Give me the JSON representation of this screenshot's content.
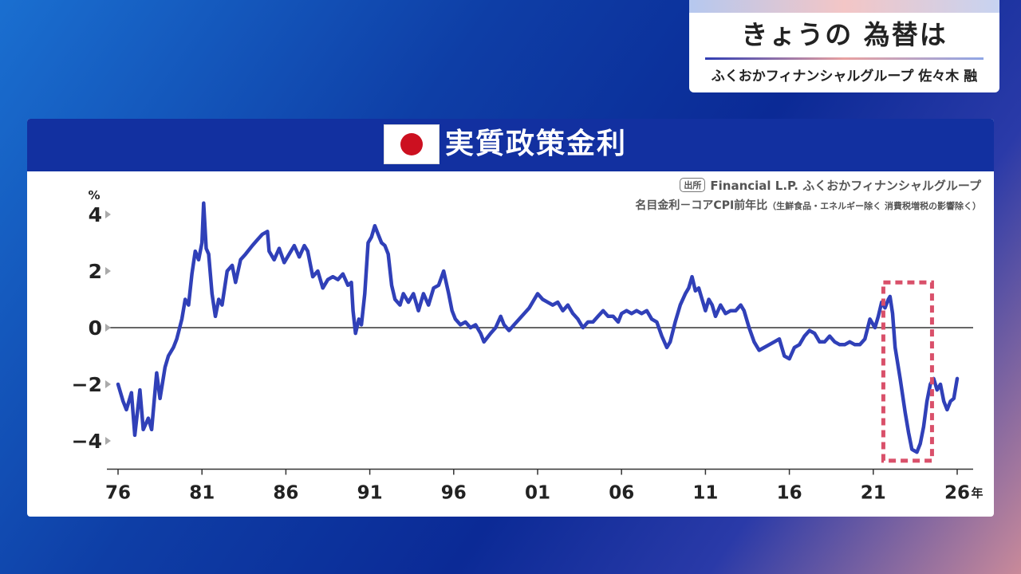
{
  "header": {
    "title": "きょうの 為替は",
    "byline": "ふくおかフィナンシャルグループ 佐々木 融"
  },
  "panel": {
    "title": "実質政策金利",
    "source_tag": "出所",
    "source": "Financial L.P. ふくおかフィナンシャルグループ",
    "note_main": "名目金利－コアCPI前年比",
    "note_detail": "（生鮮食品・エネルギー除く 消費税増税の影響除く）"
  },
  "colors": {
    "series": "#3040b8",
    "highlight": "#d9506a",
    "header_bg": "#1230a0"
  },
  "chart_data": {
    "type": "line",
    "title": "実質政策金利",
    "y_unit": "%",
    "x_unit": "年",
    "xlim": [
      1976,
      2026.5
    ],
    "ylim": [
      -5,
      4.5
    ],
    "y_ticks": [
      4,
      2,
      0,
      -2,
      -4
    ],
    "y_tick_labels": [
      "4",
      "2",
      "0",
      "−2",
      "−4"
    ],
    "x_ticks": [
      1976,
      1981,
      1986,
      1991,
      1996,
      2001,
      2006,
      2011,
      2016,
      2021,
      2026
    ],
    "x_tick_labels": [
      "76",
      "81",
      "86",
      "91",
      "96",
      "01",
      "06",
      "11",
      "16",
      "21",
      "26"
    ],
    "highlight_box": {
      "x_range": [
        2021.6,
        2024.5
      ],
      "y_range": [
        -4.7,
        1.6
      ]
    },
    "series": [
      {
        "values": [
          [
            1976.0,
            -2.0
          ],
          [
            1976.3,
            -2.6
          ],
          [
            1976.5,
            -2.9
          ],
          [
            1976.8,
            -2.3
          ],
          [
            1977.0,
            -3.8
          ],
          [
            1977.3,
            -2.2
          ],
          [
            1977.5,
            -3.6
          ],
          [
            1977.8,
            -3.2
          ],
          [
            1978.0,
            -3.6
          ],
          [
            1978.3,
            -1.6
          ],
          [
            1978.5,
            -2.5
          ],
          [
            1978.8,
            -1.4
          ],
          [
            1979.0,
            -1.0
          ],
          [
            1979.3,
            -0.7
          ],
          [
            1979.5,
            -0.4
          ],
          [
            1979.8,
            0.3
          ],
          [
            1980.0,
            1.0
          ],
          [
            1980.2,
            0.8
          ],
          [
            1980.4,
            1.9
          ],
          [
            1980.6,
            2.7
          ],
          [
            1980.8,
            2.4
          ],
          [
            1981.0,
            3.0
          ],
          [
            1981.1,
            4.4
          ],
          [
            1981.25,
            2.8
          ],
          [
            1981.4,
            2.6
          ],
          [
            1981.6,
            1.2
          ],
          [
            1981.8,
            0.4
          ],
          [
            1982.0,
            1.0
          ],
          [
            1982.2,
            0.8
          ],
          [
            1982.5,
            2.0
          ],
          [
            1982.8,
            2.2
          ],
          [
            1983.0,
            1.6
          ],
          [
            1983.3,
            2.4
          ],
          [
            1983.6,
            2.6
          ],
          [
            1984.0,
            2.9
          ],
          [
            1984.3,
            3.1
          ],
          [
            1984.6,
            3.3
          ],
          [
            1984.9,
            3.4
          ],
          [
            1985.0,
            2.7
          ],
          [
            1985.3,
            2.4
          ],
          [
            1985.6,
            2.8
          ],
          [
            1985.9,
            2.3
          ],
          [
            1986.2,
            2.6
          ],
          [
            1986.5,
            2.9
          ],
          [
            1986.8,
            2.5
          ],
          [
            1987.1,
            2.9
          ],
          [
            1987.3,
            2.7
          ],
          [
            1987.6,
            1.8
          ],
          [
            1987.9,
            2.0
          ],
          [
            1988.2,
            1.4
          ],
          [
            1988.5,
            1.7
          ],
          [
            1988.8,
            1.8
          ],
          [
            1989.1,
            1.7
          ],
          [
            1989.4,
            1.9
          ],
          [
            1989.7,
            1.5
          ],
          [
            1989.9,
            1.6
          ],
          [
            1990.0,
            0.6
          ],
          [
            1990.15,
            -0.2
          ],
          [
            1990.35,
            0.3
          ],
          [
            1990.5,
            0.1
          ],
          [
            1990.7,
            1.2
          ],
          [
            1990.9,
            3.0
          ],
          [
            1991.1,
            3.2
          ],
          [
            1991.3,
            3.6
          ],
          [
            1991.5,
            3.3
          ],
          [
            1991.7,
            3.0
          ],
          [
            1991.9,
            2.9
          ],
          [
            1992.1,
            2.6
          ],
          [
            1992.3,
            1.5
          ],
          [
            1992.5,
            1.0
          ],
          [
            1992.8,
            0.8
          ],
          [
            1993.0,
            1.2
          ],
          [
            1993.3,
            0.9
          ],
          [
            1993.6,
            1.2
          ],
          [
            1993.9,
            0.6
          ],
          [
            1994.2,
            1.2
          ],
          [
            1994.5,
            0.8
          ],
          [
            1994.8,
            1.4
          ],
          [
            1995.1,
            1.5
          ],
          [
            1995.4,
            2.0
          ],
          [
            1995.7,
            1.2
          ],
          [
            1995.9,
            0.6
          ],
          [
            1996.1,
            0.3
          ],
          [
            1996.4,
            0.1
          ],
          [
            1996.7,
            0.2
          ],
          [
            1997.0,
            0.0
          ],
          [
            1997.3,
            0.1
          ],
          [
            1997.6,
            -0.2
          ],
          [
            1997.8,
            -0.5
          ],
          [
            1998.2,
            -0.2
          ],
          [
            1998.5,
            0.0
          ],
          [
            1998.8,
            0.4
          ],
          [
            1999.0,
            0.1
          ],
          [
            1999.3,
            -0.1
          ],
          [
            1999.6,
            0.1
          ],
          [
            1999.9,
            0.3
          ],
          [
            2000.2,
            0.5
          ],
          [
            2000.5,
            0.7
          ],
          [
            2000.8,
            1.0
          ],
          [
            2001.0,
            1.2
          ],
          [
            2001.3,
            1.0
          ],
          [
            2001.6,
            0.9
          ],
          [
            2001.9,
            0.8
          ],
          [
            2002.2,
            0.9
          ],
          [
            2002.5,
            0.6
          ],
          [
            2002.8,
            0.8
          ],
          [
            2003.1,
            0.5
          ],
          [
            2003.4,
            0.3
          ],
          [
            2003.7,
            0.0
          ],
          [
            2004.0,
            0.2
          ],
          [
            2004.3,
            0.2
          ],
          [
            2004.6,
            0.4
          ],
          [
            2004.9,
            0.6
          ],
          [
            2005.2,
            0.4
          ],
          [
            2005.5,
            0.4
          ],
          [
            2005.8,
            0.2
          ],
          [
            2006.0,
            0.5
          ],
          [
            2006.3,
            0.6
          ],
          [
            2006.6,
            0.5
          ],
          [
            2006.9,
            0.6
          ],
          [
            2007.2,
            0.5
          ],
          [
            2007.5,
            0.6
          ],
          [
            2007.8,
            0.3
          ],
          [
            2008.1,
            0.2
          ],
          [
            2008.4,
            -0.3
          ],
          [
            2008.7,
            -0.7
          ],
          [
            2008.9,
            -0.5
          ],
          [
            2009.2,
            0.2
          ],
          [
            2009.5,
            0.8
          ],
          [
            2009.8,
            1.2
          ],
          [
            2010.0,
            1.4
          ],
          [
            2010.2,
            1.8
          ],
          [
            2010.4,
            1.3
          ],
          [
            2010.6,
            1.4
          ],
          [
            2010.8,
            1.0
          ],
          [
            2011.0,
            0.6
          ],
          [
            2011.2,
            1.0
          ],
          [
            2011.4,
            0.8
          ],
          [
            2011.6,
            0.4
          ],
          [
            2011.9,
            0.8
          ],
          [
            2012.2,
            0.5
          ],
          [
            2012.5,
            0.6
          ],
          [
            2012.8,
            0.6
          ],
          [
            2013.1,
            0.8
          ],
          [
            2013.3,
            0.6
          ],
          [
            2013.6,
            0.0
          ],
          [
            2013.9,
            -0.5
          ],
          [
            2014.2,
            -0.8
          ],
          [
            2014.5,
            -0.7
          ],
          [
            2014.8,
            -0.6
          ],
          [
            2015.1,
            -0.5
          ],
          [
            2015.4,
            -0.4
          ],
          [
            2015.7,
            -1.0
          ],
          [
            2016.0,
            -1.1
          ],
          [
            2016.3,
            -0.7
          ],
          [
            2016.6,
            -0.6
          ],
          [
            2016.9,
            -0.3
          ],
          [
            2017.2,
            -0.1
          ],
          [
            2017.5,
            -0.2
          ],
          [
            2017.8,
            -0.5
          ],
          [
            2018.1,
            -0.5
          ],
          [
            2018.4,
            -0.3
          ],
          [
            2018.7,
            -0.5
          ],
          [
            2019.0,
            -0.6
          ],
          [
            2019.3,
            -0.6
          ],
          [
            2019.6,
            -0.5
          ],
          [
            2019.9,
            -0.6
          ],
          [
            2020.2,
            -0.6
          ],
          [
            2020.5,
            -0.4
          ],
          [
            2020.8,
            0.3
          ],
          [
            2021.1,
            0.0
          ],
          [
            2021.3,
            0.4
          ],
          [
            2021.5,
            0.9
          ],
          [
            2021.7,
            0.7
          ],
          [
            2021.9,
            1.0
          ],
          [
            2022.0,
            1.1
          ],
          [
            2022.15,
            0.5
          ],
          [
            2022.3,
            -0.7
          ],
          [
            2022.6,
            -1.8
          ],
          [
            2022.9,
            -3.0
          ],
          [
            2023.1,
            -3.7
          ],
          [
            2023.3,
            -4.3
          ],
          [
            2023.6,
            -4.4
          ],
          [
            2023.8,
            -4.1
          ],
          [
            2024.0,
            -3.5
          ],
          [
            2024.2,
            -2.6
          ],
          [
            2024.4,
            -2.0
          ],
          [
            2024.6,
            -1.8
          ],
          [
            2024.8,
            -2.2
          ],
          [
            2025.0,
            -2.0
          ],
          [
            2025.2,
            -2.6
          ],
          [
            2025.4,
            -2.9
          ],
          [
            2025.6,
            -2.6
          ],
          [
            2025.8,
            -2.5
          ],
          [
            2026.0,
            -1.8
          ]
        ]
      }
    ]
  }
}
